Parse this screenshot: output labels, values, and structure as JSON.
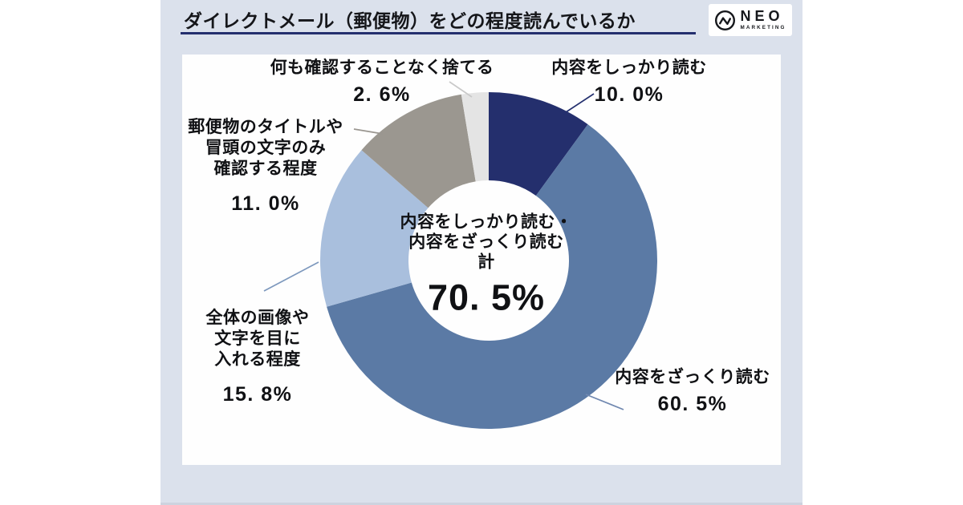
{
  "header": {
    "title": "ダイレクトメール（郵便物）をどの程度読んでいるか",
    "logo": {
      "name": "NEO",
      "sub": "MARKETING"
    }
  },
  "chart_data": {
    "type": "pie",
    "donut": true,
    "title": "ダイレクトメール（郵便物）をどの程度読んでいるか",
    "start_angle_deg": 0,
    "direction": "clockwise",
    "categories": [
      "内容をしっかり読む",
      "内容をざっくり読む",
      "全体の画像や文字を目に入れる程度",
      "郵便物のタイトルや冒頭の文字のみ確認する程度",
      "何も確認することなく捨てる"
    ],
    "values": [
      10.0,
      60.5,
      15.8,
      11.0,
      2.6
    ],
    "colors": [
      "#242f6d",
      "#5b7aa5",
      "#a9bfdd",
      "#9b9790",
      "#e4e4e4"
    ],
    "leader_colors": [
      "#232f6e",
      "#7088b0",
      "#7d98bd",
      "#9a9690",
      "#c9c9c9"
    ],
    "center_total": 70.5,
    "center_label": "内容をしっかり読む・\n内容をざっくり読む\n計",
    "center_value": "70. 5%"
  },
  "callouts": {
    "read_thoroughly": {
      "text": "内容をしっかり読む",
      "value": "10. 0%"
    },
    "read_roughly": {
      "text": "内容をざっくり読む",
      "value": "60. 5%"
    },
    "glance_images": {
      "text": "全体の画像や\n文字を目に\n入れる程度",
      "value": "15. 8%"
    },
    "check_title_only": {
      "text": "郵便物のタイトルや\n冒頭の文字のみ\n確認する程度",
      "value": "11. 0%"
    },
    "discard_unchecked": {
      "text": "何も確認することなく捨てる",
      "value": "2. 6%"
    }
  }
}
